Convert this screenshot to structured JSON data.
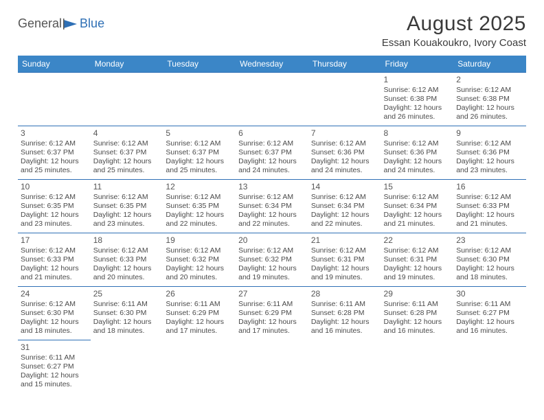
{
  "logo": {
    "part1": "General",
    "part2": "Blue"
  },
  "title": "August 2025",
  "location": "Essan Kouakoukro, Ivory Coast",
  "colors": {
    "header_bg": "#3b86c7",
    "header_text": "#ffffff",
    "border": "#2e6fb5",
    "text": "#4a4a4a",
    "logo_gray": "#555555",
    "logo_blue": "#2e6fb5"
  },
  "day_headers": [
    "Sunday",
    "Monday",
    "Tuesday",
    "Wednesday",
    "Thursday",
    "Friday",
    "Saturday"
  ],
  "weeks": [
    [
      null,
      null,
      null,
      null,
      null,
      {
        "n": "1",
        "sr": "Sunrise: 6:12 AM",
        "ss": "Sunset: 6:38 PM",
        "d1": "Daylight: 12 hours",
        "d2": "and 26 minutes."
      },
      {
        "n": "2",
        "sr": "Sunrise: 6:12 AM",
        "ss": "Sunset: 6:38 PM",
        "d1": "Daylight: 12 hours",
        "d2": "and 26 minutes."
      }
    ],
    [
      {
        "n": "3",
        "sr": "Sunrise: 6:12 AM",
        "ss": "Sunset: 6:37 PM",
        "d1": "Daylight: 12 hours",
        "d2": "and 25 minutes."
      },
      {
        "n": "4",
        "sr": "Sunrise: 6:12 AM",
        "ss": "Sunset: 6:37 PM",
        "d1": "Daylight: 12 hours",
        "d2": "and 25 minutes."
      },
      {
        "n": "5",
        "sr": "Sunrise: 6:12 AM",
        "ss": "Sunset: 6:37 PM",
        "d1": "Daylight: 12 hours",
        "d2": "and 25 minutes."
      },
      {
        "n": "6",
        "sr": "Sunrise: 6:12 AM",
        "ss": "Sunset: 6:37 PM",
        "d1": "Daylight: 12 hours",
        "d2": "and 24 minutes."
      },
      {
        "n": "7",
        "sr": "Sunrise: 6:12 AM",
        "ss": "Sunset: 6:36 PM",
        "d1": "Daylight: 12 hours",
        "d2": "and 24 minutes."
      },
      {
        "n": "8",
        "sr": "Sunrise: 6:12 AM",
        "ss": "Sunset: 6:36 PM",
        "d1": "Daylight: 12 hours",
        "d2": "and 24 minutes."
      },
      {
        "n": "9",
        "sr": "Sunrise: 6:12 AM",
        "ss": "Sunset: 6:36 PM",
        "d1": "Daylight: 12 hours",
        "d2": "and 23 minutes."
      }
    ],
    [
      {
        "n": "10",
        "sr": "Sunrise: 6:12 AM",
        "ss": "Sunset: 6:35 PM",
        "d1": "Daylight: 12 hours",
        "d2": "and 23 minutes."
      },
      {
        "n": "11",
        "sr": "Sunrise: 6:12 AM",
        "ss": "Sunset: 6:35 PM",
        "d1": "Daylight: 12 hours",
        "d2": "and 23 minutes."
      },
      {
        "n": "12",
        "sr": "Sunrise: 6:12 AM",
        "ss": "Sunset: 6:35 PM",
        "d1": "Daylight: 12 hours",
        "d2": "and 22 minutes."
      },
      {
        "n": "13",
        "sr": "Sunrise: 6:12 AM",
        "ss": "Sunset: 6:34 PM",
        "d1": "Daylight: 12 hours",
        "d2": "and 22 minutes."
      },
      {
        "n": "14",
        "sr": "Sunrise: 6:12 AM",
        "ss": "Sunset: 6:34 PM",
        "d1": "Daylight: 12 hours",
        "d2": "and 22 minutes."
      },
      {
        "n": "15",
        "sr": "Sunrise: 6:12 AM",
        "ss": "Sunset: 6:34 PM",
        "d1": "Daylight: 12 hours",
        "d2": "and 21 minutes."
      },
      {
        "n": "16",
        "sr": "Sunrise: 6:12 AM",
        "ss": "Sunset: 6:33 PM",
        "d1": "Daylight: 12 hours",
        "d2": "and 21 minutes."
      }
    ],
    [
      {
        "n": "17",
        "sr": "Sunrise: 6:12 AM",
        "ss": "Sunset: 6:33 PM",
        "d1": "Daylight: 12 hours",
        "d2": "and 21 minutes."
      },
      {
        "n": "18",
        "sr": "Sunrise: 6:12 AM",
        "ss": "Sunset: 6:33 PM",
        "d1": "Daylight: 12 hours",
        "d2": "and 20 minutes."
      },
      {
        "n": "19",
        "sr": "Sunrise: 6:12 AM",
        "ss": "Sunset: 6:32 PM",
        "d1": "Daylight: 12 hours",
        "d2": "and 20 minutes."
      },
      {
        "n": "20",
        "sr": "Sunrise: 6:12 AM",
        "ss": "Sunset: 6:32 PM",
        "d1": "Daylight: 12 hours",
        "d2": "and 19 minutes."
      },
      {
        "n": "21",
        "sr": "Sunrise: 6:12 AM",
        "ss": "Sunset: 6:31 PM",
        "d1": "Daylight: 12 hours",
        "d2": "and 19 minutes."
      },
      {
        "n": "22",
        "sr": "Sunrise: 6:12 AM",
        "ss": "Sunset: 6:31 PM",
        "d1": "Daylight: 12 hours",
        "d2": "and 19 minutes."
      },
      {
        "n": "23",
        "sr": "Sunrise: 6:12 AM",
        "ss": "Sunset: 6:30 PM",
        "d1": "Daylight: 12 hours",
        "d2": "and 18 minutes."
      }
    ],
    [
      {
        "n": "24",
        "sr": "Sunrise: 6:12 AM",
        "ss": "Sunset: 6:30 PM",
        "d1": "Daylight: 12 hours",
        "d2": "and 18 minutes."
      },
      {
        "n": "25",
        "sr": "Sunrise: 6:11 AM",
        "ss": "Sunset: 6:30 PM",
        "d1": "Daylight: 12 hours",
        "d2": "and 18 minutes."
      },
      {
        "n": "26",
        "sr": "Sunrise: 6:11 AM",
        "ss": "Sunset: 6:29 PM",
        "d1": "Daylight: 12 hours",
        "d2": "and 17 minutes."
      },
      {
        "n": "27",
        "sr": "Sunrise: 6:11 AM",
        "ss": "Sunset: 6:29 PM",
        "d1": "Daylight: 12 hours",
        "d2": "and 17 minutes."
      },
      {
        "n": "28",
        "sr": "Sunrise: 6:11 AM",
        "ss": "Sunset: 6:28 PM",
        "d1": "Daylight: 12 hours",
        "d2": "and 16 minutes."
      },
      {
        "n": "29",
        "sr": "Sunrise: 6:11 AM",
        "ss": "Sunset: 6:28 PM",
        "d1": "Daylight: 12 hours",
        "d2": "and 16 minutes."
      },
      {
        "n": "30",
        "sr": "Sunrise: 6:11 AM",
        "ss": "Sunset: 6:27 PM",
        "d1": "Daylight: 12 hours",
        "d2": "and 16 minutes."
      }
    ],
    [
      {
        "n": "31",
        "sr": "Sunrise: 6:11 AM",
        "ss": "Sunset: 6:27 PM",
        "d1": "Daylight: 12 hours",
        "d2": "and 15 minutes."
      },
      null,
      null,
      null,
      null,
      null,
      null
    ]
  ]
}
